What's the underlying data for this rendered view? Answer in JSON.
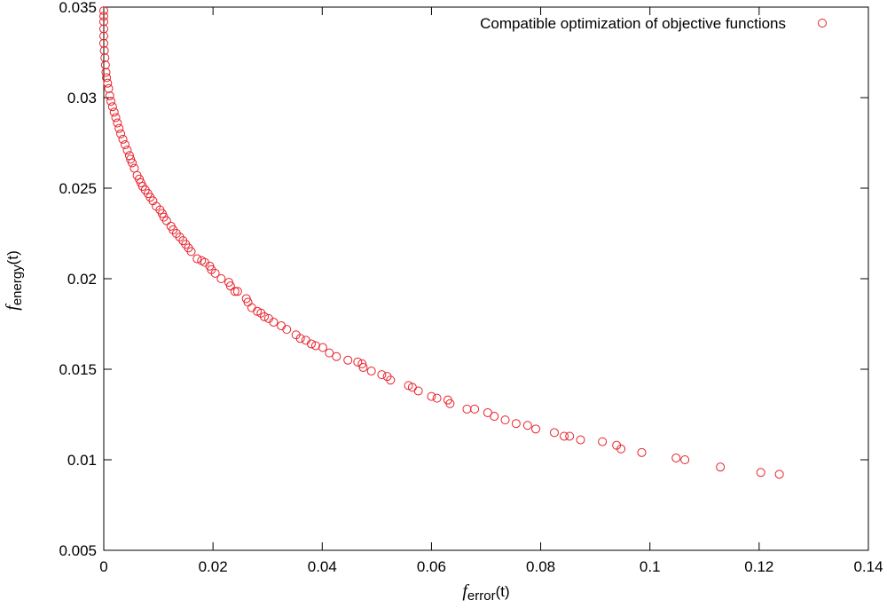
{
  "chart_data": {
    "type": "scatter",
    "xlabel": {
      "symbol": "f",
      "subscript": "error",
      "suffix": "(t)"
    },
    "ylabel": {
      "symbol": "f",
      "subscript": "energy",
      "suffix": "(t)"
    },
    "xlim": [
      0,
      0.14
    ],
    "ylim": [
      0.005,
      0.035
    ],
    "xticks": [
      0,
      0.02,
      0.04,
      0.06,
      0.08,
      0.1,
      0.12,
      0.14
    ],
    "yticks": [
      0.005,
      0.01,
      0.015,
      0.02,
      0.025,
      0.03,
      0.035
    ],
    "legend": "upper right",
    "series": [
      {
        "name": "Compatible optimization of objective functions",
        "color": "#e8202a",
        "x": [
          0.1237,
          0.1203,
          0.1129,
          0.1064,
          0.1048,
          0.0985,
          0.0947,
          0.0939,
          0.0913,
          0.0873,
          0.0853,
          0.0843,
          0.0825,
          0.0791,
          0.0776,
          0.0755,
          0.0735,
          0.0715,
          0.0703,
          0.0679,
          0.0665,
          0.0634,
          0.063,
          0.061,
          0.06,
          0.0576,
          0.0565,
          0.0558,
          0.0525,
          0.0519,
          0.0509,
          0.049,
          0.0475,
          0.0473,
          0.0465,
          0.0447,
          0.0426,
          0.0413,
          0.0401,
          0.0388,
          0.038,
          0.037,
          0.036,
          0.0352,
          0.0335,
          0.0325,
          0.0311,
          0.0302,
          0.0294,
          0.0288,
          0.0281,
          0.0271,
          0.0264,
          0.0261,
          0.0245,
          0.024,
          0.0232,
          0.0229,
          0.0215,
          0.0204,
          0.0197,
          0.0194,
          0.0185,
          0.0179,
          0.0171,
          0.016,
          0.0155,
          0.015,
          0.0145,
          0.0139,
          0.0133,
          0.0127,
          0.0123,
          0.0115,
          0.011,
          0.0107,
          0.0103,
          0.0096,
          0.009,
          0.0085,
          0.0081,
          0.0076,
          0.0071,
          0.0068,
          0.0065,
          0.0061,
          0.0056,
          0.0052,
          0.0049,
          0.0047,
          0.0043,
          0.0039,
          0.0035,
          0.0031,
          0.0028,
          0.0025,
          0.0022,
          0.0019,
          0.0016,
          0.0013,
          0.0011,
          0.0009,
          0.0007,
          0.0005,
          0.0004,
          0.0003,
          0.0002,
          0.0001,
          0,
          0,
          0,
          0,
          0,
          0
        ],
        "values": [
          0.0092,
          0.0093,
          0.0096,
          0.01,
          0.0101,
          0.0104,
          0.0106,
          0.0108,
          0.011,
          0.0111,
          0.0113,
          0.0113,
          0.0115,
          0.0117,
          0.0119,
          0.012,
          0.0122,
          0.0124,
          0.0126,
          0.0128,
          0.0128,
          0.0131,
          0.0133,
          0.0134,
          0.0135,
          0.0138,
          0.014,
          0.0141,
          0.0144,
          0.0146,
          0.0147,
          0.0149,
          0.0151,
          0.0153,
          0.0154,
          0.0155,
          0.0157,
          0.0159,
          0.0162,
          0.0163,
          0.0164,
          0.0166,
          0.0167,
          0.0169,
          0.0172,
          0.0174,
          0.0176,
          0.0178,
          0.0179,
          0.0181,
          0.0182,
          0.0184,
          0.0187,
          0.0189,
          0.0193,
          0.0193,
          0.0196,
          0.0198,
          0.02,
          0.0203,
          0.0205,
          0.0207,
          0.0209,
          0.021,
          0.0211,
          0.0215,
          0.0217,
          0.0219,
          0.0221,
          0.0223,
          0.0225,
          0.0227,
          0.0229,
          0.0232,
          0.0234,
          0.0236,
          0.0238,
          0.024,
          0.0243,
          0.0245,
          0.0247,
          0.0249,
          0.0251,
          0.0253,
          0.0255,
          0.0257,
          0.0261,
          0.0264,
          0.0266,
          0.0268,
          0.0271,
          0.0274,
          0.0277,
          0.028,
          0.0283,
          0.0286,
          0.0289,
          0.0292,
          0.0295,
          0.0298,
          0.0301,
          0.0305,
          0.0308,
          0.0311,
          0.0314,
          0.0318,
          0.0322,
          0.0326,
          0.033,
          0.0334,
          0.0338,
          0.0342,
          0.0345,
          0.0348
        ]
      }
    ]
  }
}
